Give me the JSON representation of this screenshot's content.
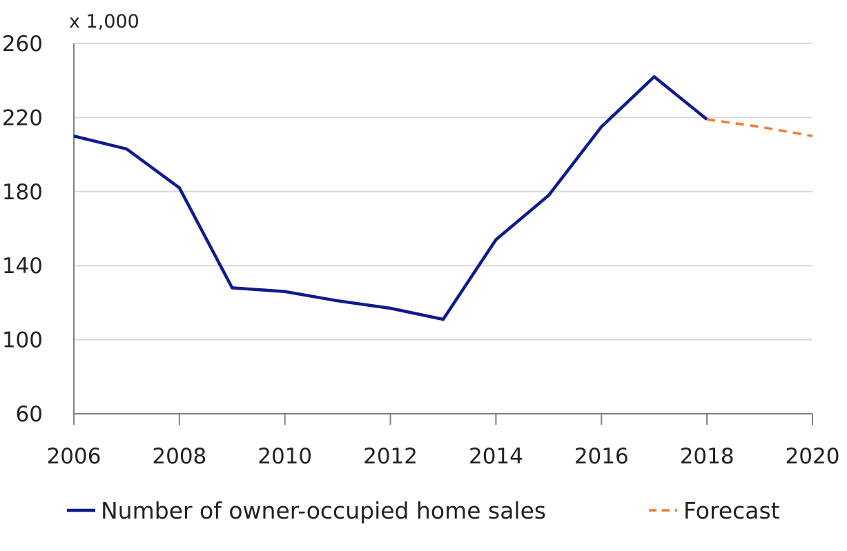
{
  "chart_data": {
    "type": "line",
    "y_unit_label": "x 1,000",
    "x": [
      2006,
      2007,
      2008,
      2009,
      2010,
      2011,
      2012,
      2013,
      2014,
      2015,
      2016,
      2017,
      2018,
      2019,
      2020
    ],
    "series": [
      {
        "name": "Number of owner-occupied home sales",
        "color": "#0f1b8c",
        "style": "solid",
        "points": [
          [
            2006,
            210
          ],
          [
            2007,
            203
          ],
          [
            2008,
            182
          ],
          [
            2009,
            128
          ],
          [
            2010,
            126
          ],
          [
            2011,
            121
          ],
          [
            2012,
            117
          ],
          [
            2013,
            111
          ],
          [
            2014,
            154
          ],
          [
            2015,
            178
          ],
          [
            2016,
            215
          ],
          [
            2017,
            242
          ],
          [
            2018,
            219
          ]
        ]
      },
      {
        "name": "Forecast",
        "color": "#ed7d31",
        "style": "dashed",
        "points": [
          [
            2018,
            219
          ],
          [
            2019,
            215
          ],
          [
            2020,
            210
          ]
        ]
      }
    ],
    "xlim": [
      2006,
      2020
    ],
    "ylim": [
      60,
      260
    ],
    "x_ticks": [
      "2006",
      "2008",
      "2010",
      "2012",
      "2014",
      "2016",
      "2018",
      "2020"
    ],
    "y_ticks": [
      "60",
      "100",
      "140",
      "180",
      "220",
      "260"
    ],
    "grid": "horizontal",
    "legend_position": "bottom"
  }
}
